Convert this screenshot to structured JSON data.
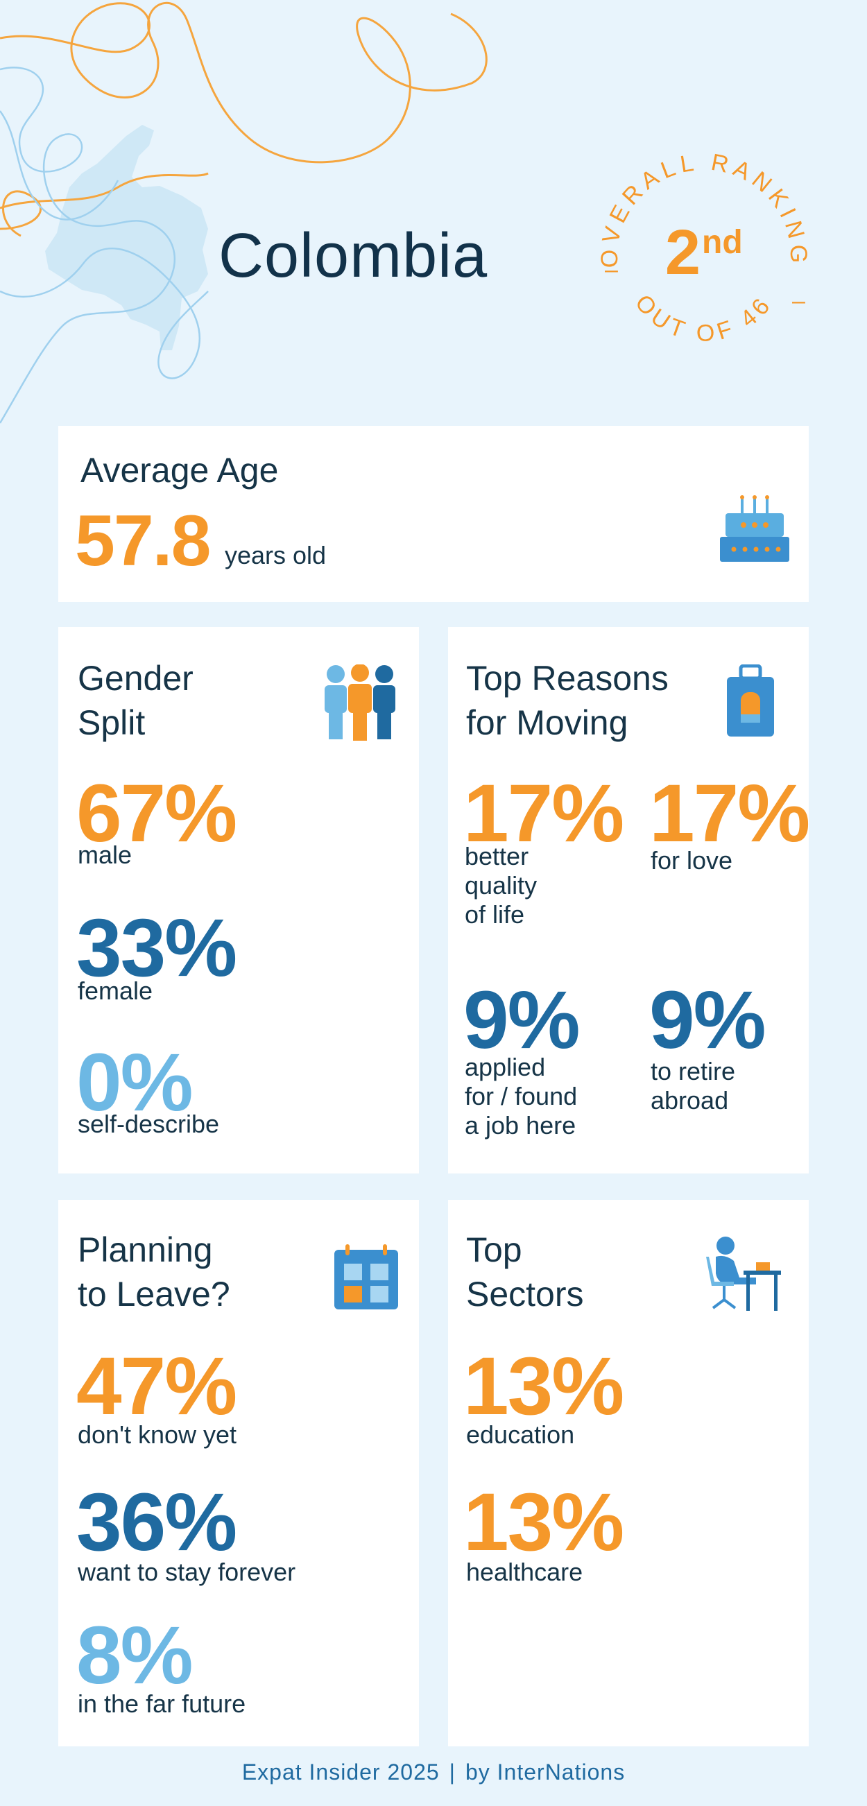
{
  "header": {
    "country": "Colombia",
    "ranking_label_top": "OVERALL RANKING",
    "ranking_value": "2",
    "ranking_suffix": "nd",
    "ranking_label_bottom": "OUT OF 46"
  },
  "average_age": {
    "title": "Average Age",
    "value": "57.8",
    "unit": "years old",
    "icon": "birthday-cake-icon"
  },
  "gender_split": {
    "title_line1": "Gender",
    "title_line2": "Split",
    "icon": "people-icon",
    "items": [
      {
        "value": "67%",
        "label": "male"
      },
      {
        "value": "33%",
        "label": "female"
      },
      {
        "value": "0%",
        "label": "self-describe"
      }
    ]
  },
  "top_reasons": {
    "title_line1": "Top Reasons",
    "title_line2": "for Moving",
    "icon": "luggage-icon",
    "items": [
      {
        "value": "17%",
        "label_lines": [
          "better",
          "quality",
          "of life"
        ]
      },
      {
        "value": "17%",
        "label_lines": [
          "for love"
        ]
      },
      {
        "value": "9%",
        "label_lines": [
          "applied",
          "for / found",
          "a job here"
        ]
      },
      {
        "value": "9%",
        "label_lines": [
          "to retire",
          "abroad"
        ]
      }
    ]
  },
  "planning_to_leave": {
    "title_line1": "Planning",
    "title_line2": "to Leave?",
    "icon": "calendar-icon",
    "items": [
      {
        "value": "47%",
        "label": "don't know yet"
      },
      {
        "value": "36%",
        "label": "want to stay forever"
      },
      {
        "value": "8%",
        "label": "in the far future"
      }
    ]
  },
  "top_sectors": {
    "title_line1": "Top",
    "title_line2": "Sectors",
    "icon": "desk-worker-icon",
    "items": [
      {
        "value": "13%",
        "label": "education"
      },
      {
        "value": "13%",
        "label": "healthcare"
      }
    ]
  },
  "footer": {
    "left": "Expat Insider 2025",
    "separator": "|",
    "right": "by InterNations"
  },
  "colors": {
    "background": "#e8f4fc",
    "orange": "#f5982a",
    "dark_blue": "#1f6aa0",
    "light_blue": "#6db8e4",
    "text": "#163447"
  }
}
